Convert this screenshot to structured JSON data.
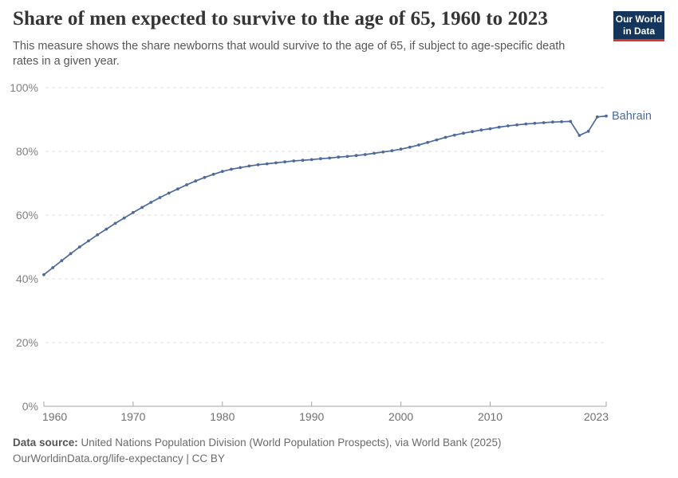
{
  "header": {
    "title": "Share of men expected to survive to the age of 65, 1960 to 2023",
    "subtitle": "This measure shows the share newborns that would survive to the age of 65, if subject to age-specific death rates in a given year.",
    "logo": {
      "line1": "Our World",
      "line2": "in Data",
      "background_color": "#14355c",
      "accent_color": "#d7362a"
    }
  },
  "chart_data": {
    "type": "line",
    "title": "Share of men expected to survive to the age of 65, 1960 to 2023",
    "xlabel": "",
    "ylabel": "",
    "xlim": [
      1960,
      2023
    ],
    "ylim": [
      0,
      100
    ],
    "grid": "horizontal-dashed",
    "legend_position": "end-of-line-label",
    "x_ticks": [
      1960,
      1970,
      1980,
      1990,
      2000,
      2010,
      2023
    ],
    "y_ticks": [
      0,
      20,
      40,
      60,
      80,
      100
    ],
    "y_tick_suffix": "%",
    "series": [
      {
        "name": "Bahrain",
        "color": "#4c6a9c",
        "x": [
          1960,
          1961,
          1962,
          1963,
          1964,
          1965,
          1966,
          1967,
          1968,
          1969,
          1970,
          1971,
          1972,
          1973,
          1974,
          1975,
          1976,
          1977,
          1978,
          1979,
          1980,
          1981,
          1982,
          1983,
          1984,
          1985,
          1986,
          1987,
          1988,
          1989,
          1990,
          1991,
          1992,
          1993,
          1994,
          1995,
          1996,
          1997,
          1998,
          1999,
          2000,
          2001,
          2002,
          2003,
          2004,
          2005,
          2006,
          2007,
          2008,
          2009,
          2010,
          2011,
          2012,
          2013,
          2014,
          2015,
          2016,
          2017,
          2018,
          2019,
          2020,
          2021,
          2022,
          2023
        ],
        "values": [
          41.3,
          43.5,
          45.7,
          47.9,
          50.0,
          51.9,
          53.8,
          55.6,
          57.4,
          59.1,
          60.8,
          62.4,
          64.0,
          65.5,
          66.9,
          68.2,
          69.5,
          70.7,
          71.8,
          72.8,
          73.7,
          74.4,
          74.9,
          75.4,
          75.8,
          76.1,
          76.4,
          76.7,
          77.0,
          77.2,
          77.4,
          77.7,
          77.9,
          78.2,
          78.4,
          78.7,
          79.0,
          79.4,
          79.8,
          80.2,
          80.7,
          81.3,
          82.0,
          82.8,
          83.6,
          84.4,
          85.1,
          85.7,
          86.2,
          86.7,
          87.1,
          87.6,
          88.0,
          88.3,
          88.6,
          88.8,
          89.0,
          89.2,
          89.3,
          89.4,
          85.0,
          86.3,
          90.8,
          91.1
        ]
      }
    ]
  },
  "footer": {
    "source_label": "Data source:",
    "source_text": " United Nations Population Division (World Population Prospects), via World Bank (2025)",
    "note_text": "OurWorldinData.org/life-expectancy | CC BY"
  }
}
